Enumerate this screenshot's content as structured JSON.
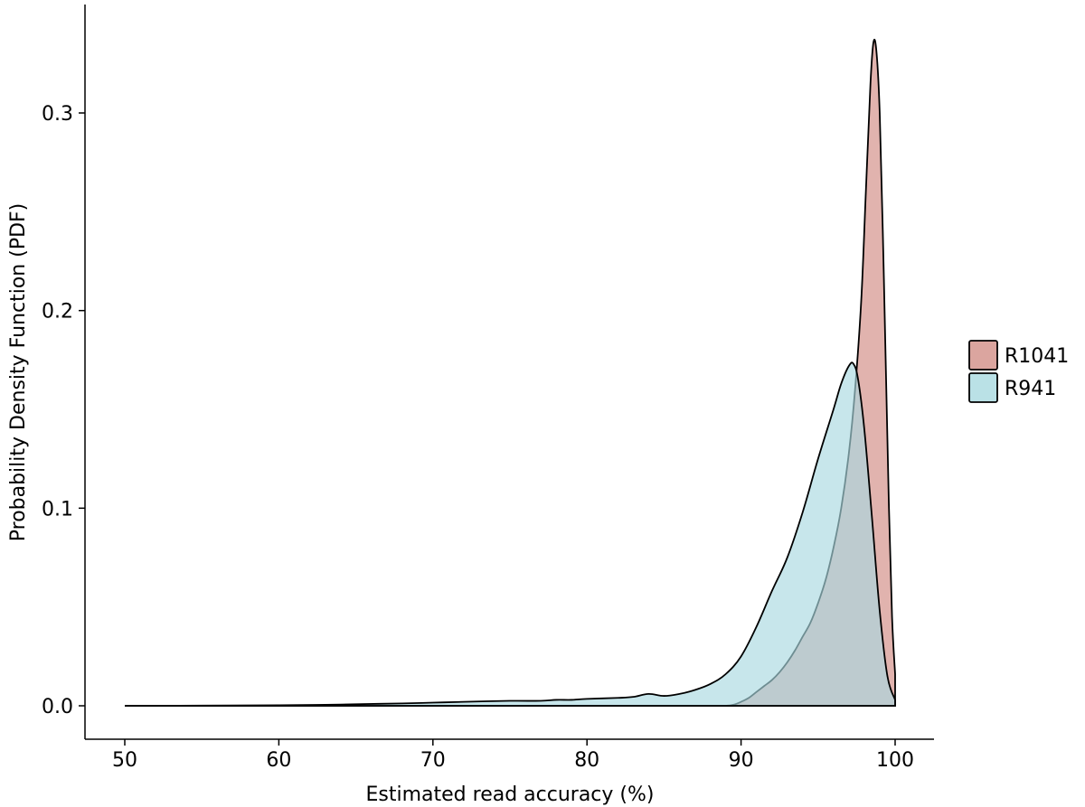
{
  "chart_data": {
    "type": "area",
    "title": "",
    "xlabel": "Estimated read accuracy (%)",
    "ylabel": "Probability Density Function (PDF)",
    "xlim": [
      50,
      100
    ],
    "ylim": [
      0,
      0.345
    ],
    "xticks": [
      50,
      60,
      70,
      80,
      90,
      100
    ],
    "xtick_labels": [
      "50",
      "60",
      "70",
      "80",
      "90",
      "100"
    ],
    "yticks": [
      0.0,
      0.1,
      0.2,
      0.3
    ],
    "ytick_labels": [
      "0.0",
      "0.1",
      "0.2",
      "0.3"
    ],
    "grid": false,
    "legend_position": "right",
    "series": [
      {
        "name": "R1041",
        "color": "#d9a09a",
        "fill_opacity": 0.8,
        "points": [
          [
            50,
            0
          ],
          [
            55,
            0
          ],
          [
            60,
            0
          ],
          [
            65,
            0
          ],
          [
            70,
            0
          ],
          [
            75,
            0
          ],
          [
            80,
            0
          ],
          [
            85,
            0
          ],
          [
            88,
            0
          ],
          [
            89,
            0
          ],
          [
            89.5,
            0.0005
          ],
          [
            90,
            0.002
          ],
          [
            90.5,
            0.004
          ],
          [
            91,
            0.007
          ],
          [
            91.5,
            0.01
          ],
          [
            92,
            0.013
          ],
          [
            92.5,
            0.017
          ],
          [
            93,
            0.022
          ],
          [
            93.5,
            0.028
          ],
          [
            94,
            0.035
          ],
          [
            94.5,
            0.042
          ],
          [
            95,
            0.052
          ],
          [
            95.5,
            0.064
          ],
          [
            96,
            0.08
          ],
          [
            96.5,
            0.1
          ],
          [
            97,
            0.128
          ],
          [
            97.4,
            0.16
          ],
          [
            97.8,
            0.205
          ],
          [
            98.1,
            0.26
          ],
          [
            98.4,
            0.315
          ],
          [
            98.6,
            0.336
          ],
          [
            98.8,
            0.33
          ],
          [
            99.0,
            0.3
          ],
          [
            99.2,
            0.24
          ],
          [
            99.4,
            0.17
          ],
          [
            99.6,
            0.1
          ],
          [
            99.8,
            0.045
          ],
          [
            100,
            0.016
          ]
        ]
      },
      {
        "name": "R941",
        "color": "#a9d9e0",
        "fill_opacity": 0.65,
        "points": [
          [
            50,
            0
          ],
          [
            55,
            0.0001
          ],
          [
            60,
            0.0003
          ],
          [
            63,
            0.0005
          ],
          [
            65,
            0.0008
          ],
          [
            68,
            0.0012
          ],
          [
            70,
            0.0016
          ],
          [
            72,
            0.002
          ],
          [
            75,
            0.0025
          ],
          [
            77,
            0.0025
          ],
          [
            78,
            0.003
          ],
          [
            79,
            0.003
          ],
          [
            80,
            0.0035
          ],
          [
            82,
            0.004
          ],
          [
            83,
            0.0045
          ],
          [
            84,
            0.006
          ],
          [
            85,
            0.005
          ],
          [
            86,
            0.006
          ],
          [
            87,
            0.008
          ],
          [
            88,
            0.011
          ],
          [
            89,
            0.016
          ],
          [
            90,
            0.025
          ],
          [
            91,
            0.04
          ],
          [
            92,
            0.058
          ],
          [
            93,
            0.075
          ],
          [
            94,
            0.098
          ],
          [
            95,
            0.125
          ],
          [
            96,
            0.15
          ],
          [
            96.5,
            0.163
          ],
          [
            97,
            0.172
          ],
          [
            97.3,
            0.173
          ],
          [
            97.6,
            0.165
          ],
          [
            98,
            0.14
          ],
          [
            98.5,
            0.095
          ],
          [
            99,
            0.048
          ],
          [
            99.5,
            0.015
          ],
          [
            100,
            0.003
          ]
        ]
      }
    ]
  }
}
